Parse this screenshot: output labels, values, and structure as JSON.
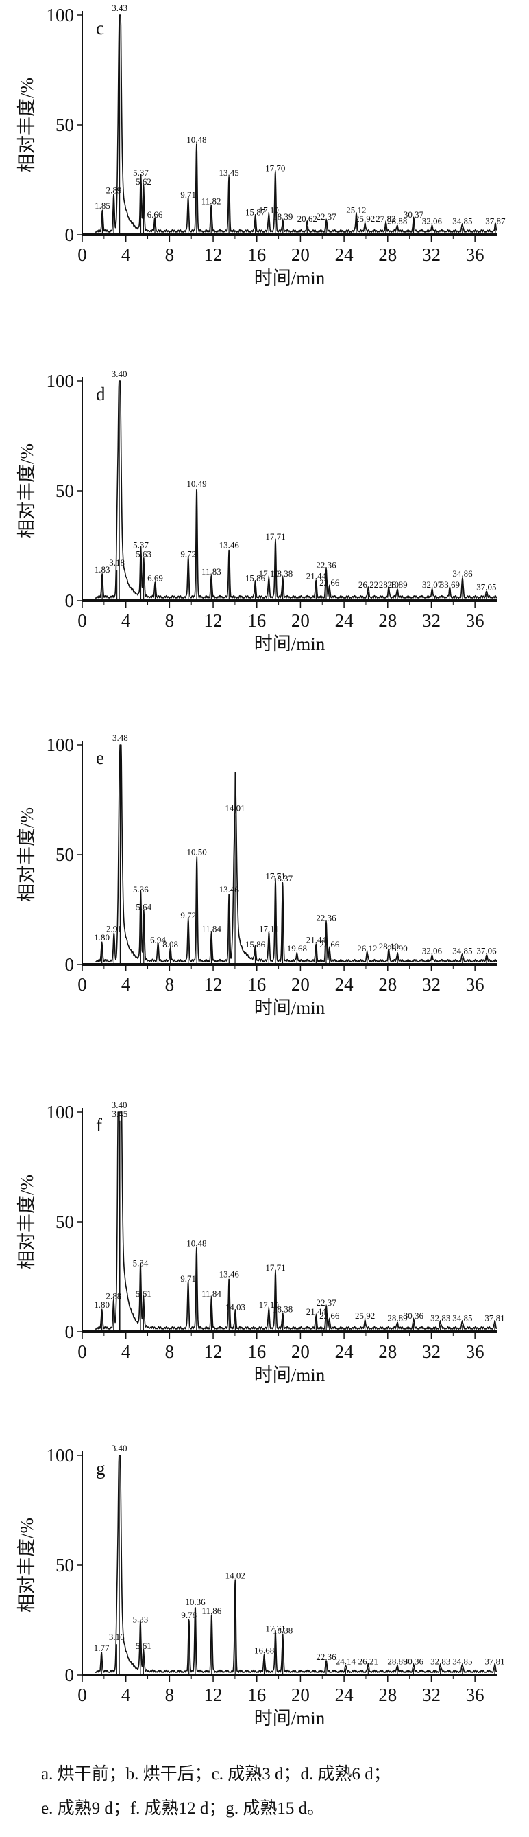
{
  "caption": {
    "line1": "a. 烘干前；b. 烘干后；c. 成熟3 d；d. 成熟6 d；",
    "line2": "e. 成熟9 d；f. 成熟12 d；g. 成熟15 d。"
  },
  "colors": {
    "ink": "#111111"
  },
  "chart_data": [
    {
      "type": "line",
      "panel_letter": "c",
      "xlabel": "时间/min",
      "ylabel": "相对丰度/%",
      "xlim": [
        0,
        38
      ],
      "ylim": [
        0,
        100
      ],
      "xticks": [
        0,
        4,
        8,
        12,
        16,
        20,
        24,
        28,
        32,
        36
      ],
      "yticks": [
        0,
        50,
        100
      ],
      "peaks": [
        {
          "x": 1.85,
          "y": 10,
          "label": "1.85"
        },
        {
          "x": 2.89,
          "y": 17,
          "label": "2.89"
        },
        {
          "x": 3.43,
          "y": 100,
          "label": "3.43"
        },
        {
          "x": 5.37,
          "y": 25,
          "label": "5.37"
        },
        {
          "x": 5.62,
          "y": 21,
          "label": "5.62"
        },
        {
          "x": 6.66,
          "y": 6,
          "label": "6.66"
        },
        {
          "x": 9.71,
          "y": 15,
          "label": "9.71"
        },
        {
          "x": 10.48,
          "y": 40,
          "label": "10.48"
        },
        {
          "x": 11.82,
          "y": 12,
          "label": "11.82"
        },
        {
          "x": 13.45,
          "y": 25,
          "label": "13.45"
        },
        {
          "x": 15.87,
          "y": 7,
          "label": "15.87"
        },
        {
          "x": 17.1,
          "y": 8,
          "label": "17.10"
        },
        {
          "x": 17.7,
          "y": 27,
          "label": "17.70"
        },
        {
          "x": 18.39,
          "y": 5,
          "label": "18.39"
        },
        {
          "x": 20.62,
          "y": 4,
          "label": "20.62"
        },
        {
          "x": 22.37,
          "y": 5,
          "label": "22.37"
        },
        {
          "x": 25.12,
          "y": 8,
          "label": "25.12"
        },
        {
          "x": 25.92,
          "y": 4,
          "label": "25.92"
        },
        {
          "x": 27.82,
          "y": 4,
          "label": "27.82"
        },
        {
          "x": 28.88,
          "y": 3,
          "label": "28.88"
        },
        {
          "x": 30.37,
          "y": 6,
          "label": "30.37"
        },
        {
          "x": 32.06,
          "y": 3,
          "label": "32.06"
        },
        {
          "x": 34.85,
          "y": 3,
          "label": "34.85"
        },
        {
          "x": 37.87,
          "y": 3,
          "label": "37.87"
        }
      ]
    },
    {
      "type": "line",
      "panel_letter": "d",
      "xlabel": "时间/min",
      "ylabel": "相对丰度/%",
      "xlim": [
        0,
        38
      ],
      "ylim": [
        0,
        100
      ],
      "xticks": [
        0,
        4,
        8,
        12,
        16,
        20,
        24,
        28,
        32,
        36
      ],
      "yticks": [
        0,
        50,
        100
      ],
      "peaks": [
        {
          "x": 1.83,
          "y": 11,
          "label": "1.83"
        },
        {
          "x": 3.18,
          "y": 14,
          "label": "3.18"
        },
        {
          "x": 3.4,
          "y": 100,
          "label": "3.40"
        },
        {
          "x": 5.37,
          "y": 22,
          "label": "5.37"
        },
        {
          "x": 5.63,
          "y": 18,
          "label": "5.63"
        },
        {
          "x": 6.69,
          "y": 7,
          "label": "6.69"
        },
        {
          "x": 9.72,
          "y": 18,
          "label": "9.72"
        },
        {
          "x": 10.49,
          "y": 50,
          "label": "10.49"
        },
        {
          "x": 11.83,
          "y": 10,
          "label": "11.83"
        },
        {
          "x": 13.46,
          "y": 22,
          "label": "13.46"
        },
        {
          "x": 15.86,
          "y": 7,
          "label": "15.86"
        },
        {
          "x": 17.1,
          "y": 9,
          "label": "17.10"
        },
        {
          "x": 17.71,
          "y": 26,
          "label": "17.71"
        },
        {
          "x": 18.38,
          "y": 9,
          "label": "18.38"
        },
        {
          "x": 21.44,
          "y": 8,
          "label": "21.44"
        },
        {
          "x": 22.36,
          "y": 13,
          "label": "22.36"
        },
        {
          "x": 22.66,
          "y": 5,
          "label": "22.66"
        },
        {
          "x": 26.22,
          "y": 4,
          "label": "26.22"
        },
        {
          "x": 28.1,
          "y": 4,
          "label": "28.10"
        },
        {
          "x": 28.89,
          "y": 4,
          "label": "28.89"
        },
        {
          "x": 32.07,
          "y": 4,
          "label": "32.07"
        },
        {
          "x": 33.69,
          "y": 4,
          "label": "33.69"
        },
        {
          "x": 34.86,
          "y": 9,
          "label": "34.86"
        },
        {
          "x": 37.05,
          "y": 3,
          "label": "37.05"
        }
      ]
    },
    {
      "type": "line",
      "panel_letter": "e",
      "xlabel": "时间/min",
      "ylabel": "相对丰度/%",
      "xlim": [
        0,
        38
      ],
      "ylim": [
        0,
        100
      ],
      "xticks": [
        0,
        4,
        8,
        12,
        16,
        20,
        24,
        28,
        32,
        36
      ],
      "yticks": [
        0,
        50,
        100
      ],
      "peaks": [
        {
          "x": 1.8,
          "y": 9,
          "label": "1.80"
        },
        {
          "x": 2.91,
          "y": 13,
          "label": "2.91"
        },
        {
          "x": 3.48,
          "y": 100,
          "label": "3.48"
        },
        {
          "x": 5.36,
          "y": 31,
          "label": "5.36"
        },
        {
          "x": 5.64,
          "y": 23,
          "label": "5.64"
        },
        {
          "x": 6.94,
          "y": 8,
          "label": "6.94"
        },
        {
          "x": 8.08,
          "y": 6,
          "label": "8.08"
        },
        {
          "x": 9.72,
          "y": 19,
          "label": "9.72"
        },
        {
          "x": 10.5,
          "y": 48,
          "label": "10.50"
        },
        {
          "x": 11.84,
          "y": 13,
          "label": "11.84"
        },
        {
          "x": 13.46,
          "y": 31,
          "label": "13.46"
        },
        {
          "x": 14.01,
          "y": 68,
          "label": "14.01"
        },
        {
          "x": 15.86,
          "y": 6,
          "label": "15.86"
        },
        {
          "x": 17.11,
          "y": 13,
          "label": "17.11"
        },
        {
          "x": 17.71,
          "y": 37,
          "label": "17.71"
        },
        {
          "x": 18.37,
          "y": 36,
          "label": "18.37"
        },
        {
          "x": 19.68,
          "y": 4,
          "label": "19.68"
        },
        {
          "x": 21.44,
          "y": 8,
          "label": "21.44"
        },
        {
          "x": 22.36,
          "y": 18,
          "label": "22.36"
        },
        {
          "x": 22.66,
          "y": 6,
          "label": "22.66"
        },
        {
          "x": 26.12,
          "y": 4,
          "label": "26.12"
        },
        {
          "x": 28.1,
          "y": 5,
          "label": "28.10"
        },
        {
          "x": 28.9,
          "y": 4,
          "label": "28.90"
        },
        {
          "x": 32.06,
          "y": 3,
          "label": "32.06"
        },
        {
          "x": 34.85,
          "y": 3,
          "label": "34.85"
        },
        {
          "x": 37.06,
          "y": 3,
          "label": "37.06"
        }
      ]
    },
    {
      "type": "line",
      "panel_letter": "f",
      "xlabel": "时间/min",
      "ylabel": "相对丰度/%",
      "xlim": [
        0,
        38
      ],
      "ylim": [
        0,
        100
      ],
      "xticks": [
        0,
        4,
        8,
        12,
        16,
        20,
        24,
        28,
        32,
        36
      ],
      "yticks": [
        0,
        50,
        100
      ],
      "peaks": [
        {
          "x": 1.8,
          "y": 9,
          "label": "1.80"
        },
        {
          "x": 2.88,
          "y": 13,
          "label": "2.88"
        },
        {
          "x": 3.4,
          "y": 100,
          "label": "3.40"
        },
        {
          "x": 3.45,
          "y": 96,
          "label": "3.45"
        },
        {
          "x": 5.34,
          "y": 28,
          "label": "5.34"
        },
        {
          "x": 5.61,
          "y": 14,
          "label": "5.61"
        },
        {
          "x": 9.71,
          "y": 21,
          "label": "9.71"
        },
        {
          "x": 10.48,
          "y": 37,
          "label": "10.48"
        },
        {
          "x": 11.84,
          "y": 14,
          "label": "11.84"
        },
        {
          "x": 13.46,
          "y": 23,
          "label": "13.46"
        },
        {
          "x": 14.03,
          "y": 8,
          "label": "14.03"
        },
        {
          "x": 17.1,
          "y": 9,
          "label": "17.10"
        },
        {
          "x": 17.71,
          "y": 26,
          "label": "17.71"
        },
        {
          "x": 18.38,
          "y": 7,
          "label": "18.38"
        },
        {
          "x": 21.44,
          "y": 6,
          "label": "21.44"
        },
        {
          "x": 22.37,
          "y": 10,
          "label": "22.37"
        },
        {
          "x": 22.66,
          "y": 4,
          "label": "22.66"
        },
        {
          "x": 25.92,
          "y": 4,
          "label": "25.92"
        },
        {
          "x": 28.89,
          "y": 3,
          "label": "28.89"
        },
        {
          "x": 30.36,
          "y": 4,
          "label": "30.36"
        },
        {
          "x": 32.83,
          "y": 3,
          "label": "32.83"
        },
        {
          "x": 34.85,
          "y": 3,
          "label": "34.85"
        },
        {
          "x": 37.81,
          "y": 3,
          "label": "37.81"
        }
      ]
    },
    {
      "type": "line",
      "panel_letter": "g",
      "xlabel": "时间/min",
      "ylabel": "相对丰度/%",
      "xlim": [
        0,
        38
      ],
      "ylim": [
        0,
        100
      ],
      "xticks": [
        0,
        4,
        8,
        12,
        16,
        20,
        24,
        28,
        32,
        36
      ],
      "yticks": [
        0,
        50,
        100
      ],
      "peaks": [
        {
          "x": 1.77,
          "y": 9,
          "label": "1.77"
        },
        {
          "x": 3.16,
          "y": 14,
          "label": "3.16"
        },
        {
          "x": 3.4,
          "y": 100,
          "label": "3.40"
        },
        {
          "x": 5.33,
          "y": 22,
          "label": "5.33"
        },
        {
          "x": 5.61,
          "y": 10,
          "label": "5.61"
        },
        {
          "x": 9.78,
          "y": 24,
          "label": "9.78"
        },
        {
          "x": 10.36,
          "y": 30,
          "label": "10.36"
        },
        {
          "x": 11.86,
          "y": 26,
          "label": "11.86"
        },
        {
          "x": 14.02,
          "y": 42,
          "label": "14.02"
        },
        {
          "x": 16.68,
          "y": 8,
          "label": "16.68"
        },
        {
          "x": 17.71,
          "y": 18,
          "label": "17.71"
        },
        {
          "x": 18.38,
          "y": 17,
          "label": "18.38"
        },
        {
          "x": 22.36,
          "y": 5,
          "label": "22.36"
        },
        {
          "x": 24.14,
          "y": 3,
          "label": "24.14"
        },
        {
          "x": 26.21,
          "y": 3,
          "label": "26.21"
        },
        {
          "x": 28.89,
          "y": 3,
          "label": "28.89"
        },
        {
          "x": 30.36,
          "y": 3,
          "label": "30.36"
        },
        {
          "x": 32.83,
          "y": 3,
          "label": "32.83"
        },
        {
          "x": 34.85,
          "y": 3,
          "label": "34.85"
        },
        {
          "x": 37.81,
          "y": 3,
          "label": "37.81"
        }
      ]
    }
  ]
}
